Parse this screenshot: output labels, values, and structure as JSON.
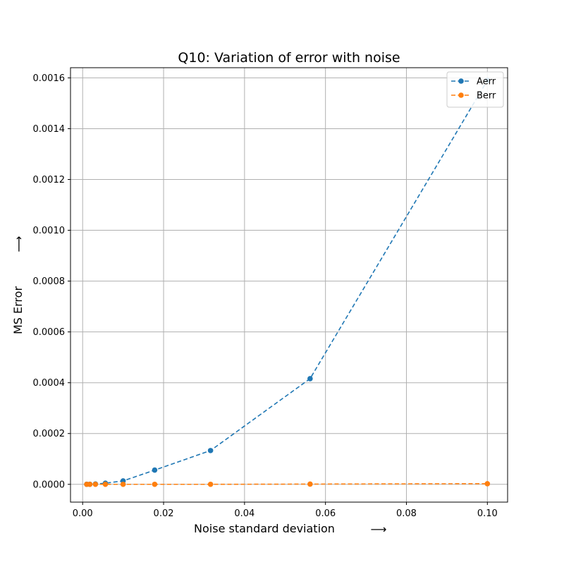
{
  "chart_data": {
    "type": "line",
    "title": "Q10: Variation of error with noise",
    "xlabel": "Noise standard deviation",
    "ylabel": "MS Error",
    "x_arrow": "⟶",
    "y_arrow": "⟶",
    "xlim": [
      -0.003,
      0.105
    ],
    "ylim": [
      -7e-05,
      0.00164
    ],
    "xticks": [
      0.0,
      0.02,
      0.04,
      0.06,
      0.08,
      0.1
    ],
    "xtick_labels": [
      "0.00",
      "0.02",
      "0.04",
      "0.06",
      "0.08",
      "0.10"
    ],
    "yticks": [
      0.0,
      0.0002,
      0.0004,
      0.0006,
      0.0008,
      0.001,
      0.0012,
      0.0014,
      0.0016
    ],
    "ytick_labels": [
      "0.0000",
      "0.0002",
      "0.0004",
      "0.0006",
      "0.0008",
      "0.0010",
      "0.0012",
      "0.0014",
      "0.0016"
    ],
    "grid": true,
    "legend_position": "top-right",
    "x": [
      0.001,
      0.00178,
      0.00316,
      0.00562,
      0.01,
      0.0178,
      0.0316,
      0.0562,
      0.1
    ],
    "series": [
      {
        "name": "Aerr",
        "color": "#1f77b4",
        "line_style": "dashed",
        "marker": "circle",
        "values": [
          2e-07,
          4e-07,
          1.2e-06,
          4.5e-06,
          1.35e-05,
          5.6e-05,
          0.000133,
          0.000416,
          0.00159
        ]
      },
      {
        "name": "Berr",
        "color": "#ff7f0e",
        "line_style": "dashed",
        "marker": "circle",
        "values": [
          1e-07,
          1e-07,
          1e-07,
          1e-07,
          1e-07,
          1e-07,
          1e-07,
          1e-06,
          2.5e-06
        ]
      }
    ]
  }
}
